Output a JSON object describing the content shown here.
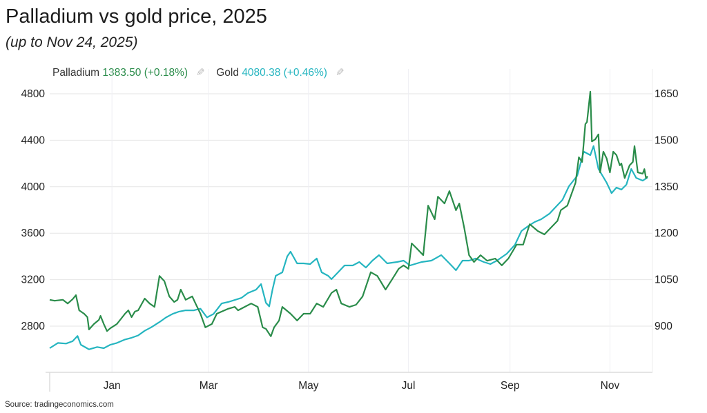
{
  "title": "Palladium vs gold price, 2025",
  "subtitle": "(up to Nov 24, 2025)",
  "source": "Source: tradingeconomics.com",
  "legend": [
    {
      "name": "Palladium",
      "value": "1383.50 (+0.18%)",
      "color": "#2a8c4a",
      "icon": "pencil-icon"
    },
    {
      "name": "Gold",
      "value": "4080.38 (+0.46%)",
      "color": "#25b5c0",
      "icon": "pencil-icon"
    }
  ],
  "chart_data": {
    "type": "line",
    "title": "Palladium vs gold price, 2025",
    "grid": true,
    "legend_position": "top-left",
    "x_ticks": [
      "Jan",
      "Mar",
      "May",
      "Jul",
      "Sep",
      "Nov"
    ],
    "x_tick_dates": [
      "2025-01-01",
      "2025-03-01",
      "2025-05-01",
      "2025-07-01",
      "2025-09-01",
      "2025-11-01"
    ],
    "xlim": [
      "2024-11-24",
      "2025-11-24"
    ],
    "y_left": {
      "ticks": [
        2800,
        3200,
        3600,
        4000,
        4400,
        4800
      ],
      "range": [
        2400,
        4950
      ]
    },
    "y_right": {
      "ticks": [
        900,
        1050,
        1200,
        1350,
        1500,
        1650
      ],
      "range": [
        750,
        1706
      ]
    },
    "series": [
      {
        "name": "Gold",
        "axis": "left",
        "color": "#25b5c0",
        "dates": [
          "2024-11-24",
          "2024-11-29",
          "2024-12-04",
          "2024-12-08",
          "2024-12-11",
          "2024-12-13",
          "2024-12-18",
          "2024-12-23",
          "2024-12-27",
          "2024-12-31",
          "2025-01-04",
          "2025-01-09",
          "2025-01-13",
          "2025-01-17",
          "2025-01-21",
          "2025-01-25",
          "2025-01-30",
          "2025-02-03",
          "2025-02-07",
          "2025-02-11",
          "2025-02-15",
          "2025-02-20",
          "2025-02-24",
          "2025-02-28",
          "2025-03-04",
          "2025-03-09",
          "2025-03-13",
          "2025-03-17",
          "2025-03-21",
          "2025-03-25",
          "2025-03-30",
          "2025-04-02",
          "2025-04-05",
          "2025-04-07",
          "2025-04-09",
          "2025-04-11",
          "2025-04-15",
          "2025-04-18",
          "2025-04-20",
          "2025-04-24",
          "2025-04-28",
          "2025-05-02",
          "2025-05-06",
          "2025-05-09",
          "2025-05-13",
          "2025-05-15",
          "2025-05-19",
          "2025-05-23",
          "2025-05-28",
          "2025-06-01",
          "2025-06-05",
          "2025-06-09",
          "2025-06-13",
          "2025-06-18",
          "2025-06-24",
          "2025-06-28",
          "2025-07-02",
          "2025-07-09",
          "2025-07-15",
          "2025-07-21",
          "2025-07-26",
          "2025-07-30",
          "2025-08-03",
          "2025-08-07",
          "2025-08-11",
          "2025-08-16",
          "2025-08-20",
          "2025-08-24",
          "2025-08-30",
          "2025-09-04",
          "2025-09-08",
          "2025-09-12",
          "2025-09-16",
          "2025-09-20",
          "2025-09-25",
          "2025-09-29",
          "2025-10-03",
          "2025-10-07",
          "2025-10-12",
          "2025-10-16",
          "2025-10-20",
          "2025-10-22",
          "2025-10-25",
          "2025-10-30",
          "2025-11-02",
          "2025-11-05",
          "2025-11-08",
          "2025-11-11",
          "2025-11-14",
          "2025-11-17",
          "2025-11-21",
          "2025-11-24"
        ],
        "values": [
          2610,
          2655,
          2650,
          2670,
          2715,
          2640,
          2600,
          2620,
          2610,
          2640,
          2655,
          2685,
          2700,
          2720,
          2760,
          2790,
          2835,
          2875,
          2905,
          2925,
          2936,
          2936,
          2950,
          2875,
          2905,
          2995,
          3008,
          3025,
          3043,
          3085,
          3114,
          3162,
          3000,
          2970,
          3115,
          3233,
          3263,
          3400,
          3441,
          3340,
          3340,
          3334,
          3382,
          3263,
          3233,
          3204,
          3263,
          3322,
          3322,
          3352,
          3304,
          3364,
          3411,
          3340,
          3352,
          3364,
          3322,
          3352,
          3364,
          3411,
          3340,
          3281,
          3364,
          3364,
          3382,
          3352,
          3334,
          3364,
          3423,
          3500,
          3619,
          3660,
          3696,
          3720,
          3767,
          3827,
          3886,
          4005,
          4094,
          4302,
          4272,
          4350,
          4153,
          4034,
          3945,
          3993,
          3975,
          4017,
          4153,
          4076,
          4052,
          4080
        ]
      },
      {
        "name": "Palladium",
        "axis": "right",
        "color": "#2a8c4a",
        "dates": [
          "2024-11-24",
          "2024-11-27",
          "2024-12-02",
          "2024-12-05",
          "2024-12-08",
          "2024-12-10",
          "2024-12-12",
          "2024-12-15",
          "2024-12-17",
          "2024-12-18",
          "2024-12-21",
          "2024-12-24",
          "2024-12-25",
          "2024-12-27",
          "2024-12-29",
          "2024-12-31",
          "2025-01-04",
          "2025-01-06",
          "2025-01-09",
          "2025-01-11",
          "2025-01-13",
          "2025-01-15",
          "2025-01-17",
          "2025-01-21",
          "2025-01-24",
          "2025-01-27",
          "2025-01-30",
          "2025-02-02",
          "2025-02-05",
          "2025-02-08",
          "2025-02-10",
          "2025-02-12",
          "2025-02-15",
          "2025-02-19",
          "2025-02-21",
          "2025-02-24",
          "2025-02-27",
          "2025-03-03",
          "2025-03-06",
          "2025-03-09",
          "2025-03-13",
          "2025-03-17",
          "2025-03-19",
          "2025-03-23",
          "2025-03-27",
          "2025-03-31",
          "2025-04-03",
          "2025-04-05",
          "2025-04-08",
          "2025-04-10",
          "2025-04-13",
          "2025-04-15",
          "2025-04-20",
          "2025-04-24",
          "2025-04-28",
          "2025-05-02",
          "2025-05-06",
          "2025-05-10",
          "2025-05-15",
          "2025-05-18",
          "2025-05-21",
          "2025-05-26",
          "2025-05-30",
          "2025-06-03",
          "2025-06-08",
          "2025-06-12",
          "2025-06-17",
          "2025-06-21",
          "2025-06-25",
          "2025-06-28",
          "2025-07-01",
          "2025-07-03",
          "2025-07-06",
          "2025-07-10",
          "2025-07-13",
          "2025-07-17",
          "2025-07-19",
          "2025-07-23",
          "2025-07-26",
          "2025-07-30",
          "2025-08-01",
          "2025-08-04",
          "2025-08-07",
          "2025-08-10",
          "2025-08-14",
          "2025-08-18",
          "2025-08-23",
          "2025-08-27",
          "2025-08-31",
          "2025-09-05",
          "2025-09-09",
          "2025-09-13",
          "2025-09-18",
          "2025-09-22",
          "2025-09-26",
          "2025-09-30",
          "2025-10-02",
          "2025-10-06",
          "2025-10-11",
          "2025-10-13",
          "2025-10-15",
          "2025-10-17",
          "2025-10-18",
          "2025-10-20",
          "2025-10-21",
          "2025-10-23",
          "2025-10-25",
          "2025-10-26",
          "2025-10-28",
          "2025-10-30",
          "2025-11-01",
          "2025-11-03",
          "2025-11-05",
          "2025-11-07",
          "2025-11-08",
          "2025-11-10",
          "2025-11-13",
          "2025-11-15",
          "2025-11-16",
          "2025-11-18",
          "2025-11-21",
          "2025-11-22",
          "2025-11-23",
          "2025-11-24"
        ],
        "values": [
          985,
          982,
          985,
          973,
          987,
          1000,
          951,
          940,
          929,
          889,
          907,
          920,
          933,
          907,
          884,
          893,
          907,
          920,
          940,
          951,
          929,
          947,
          951,
          989,
          973,
          962,
          1062,
          1045,
          996,
          978,
          985,
          1018,
          985,
          996,
          973,
          940,
          896,
          907,
          940,
          947,
          956,
          962,
          951,
          962,
          973,
          962,
          896,
          891,
          867,
          896,
          918,
          962,
          940,
          918,
          940,
          940,
          973,
          962,
          1007,
          1018,
          973,
          962,
          969,
          996,
          1074,
          1062,
          1018,
          1051,
          1085,
          1096,
          1085,
          1167,
          1151,
          1129,
          1289,
          1245,
          1318,
          1296,
          1336,
          1274,
          1296,
          1218,
          1129,
          1107,
          1129,
          1111,
          1118,
          1096,
          1118,
          1163,
          1163,
          1229,
          1207,
          1196,
          1218,
          1240,
          1274,
          1289,
          1363,
          1445,
          1430,
          1552,
          1559,
          1657,
          1496,
          1503,
          1519,
          1396,
          1463,
          1441,
          1396,
          1463,
          1452,
          1419,
          1425,
          1378,
          1419,
          1430,
          1481,
          1396,
          1392,
          1407,
          1378,
          1383.5
        ]
      }
    ]
  }
}
